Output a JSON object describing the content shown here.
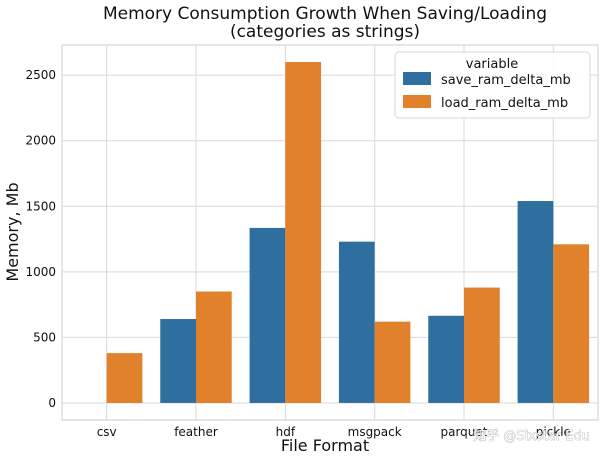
{
  "chart_data": {
    "type": "bar",
    "title": "Memory Consumption Growth When Saving/Loading",
    "subtitle": "(categories as strings)",
    "xlabel": "File Format",
    "ylabel": "Memory, Mb",
    "categories": [
      "csv",
      "feather",
      "hdf",
      "msgpack",
      "parquet",
      "pickle"
    ],
    "series": [
      {
        "name": "save_ram_delta_mb",
        "color": "#2f6f9f",
        "values": [
          0,
          640,
          1335,
          1230,
          665,
          1540
        ]
      },
      {
        "name": "load_ram_delta_mb",
        "color": "#e1812c",
        "values": [
          380,
          850,
          2600,
          620,
          880,
          1210
        ]
      }
    ],
    "yticks": [
      0,
      500,
      1000,
      1500,
      2000,
      2500
    ],
    "ylim": [
      -130,
      2730
    ],
    "grid": true,
    "legend": {
      "title": "variable",
      "placement": "top-right"
    }
  },
  "watermark": "知乎 @Sixstar Edu"
}
